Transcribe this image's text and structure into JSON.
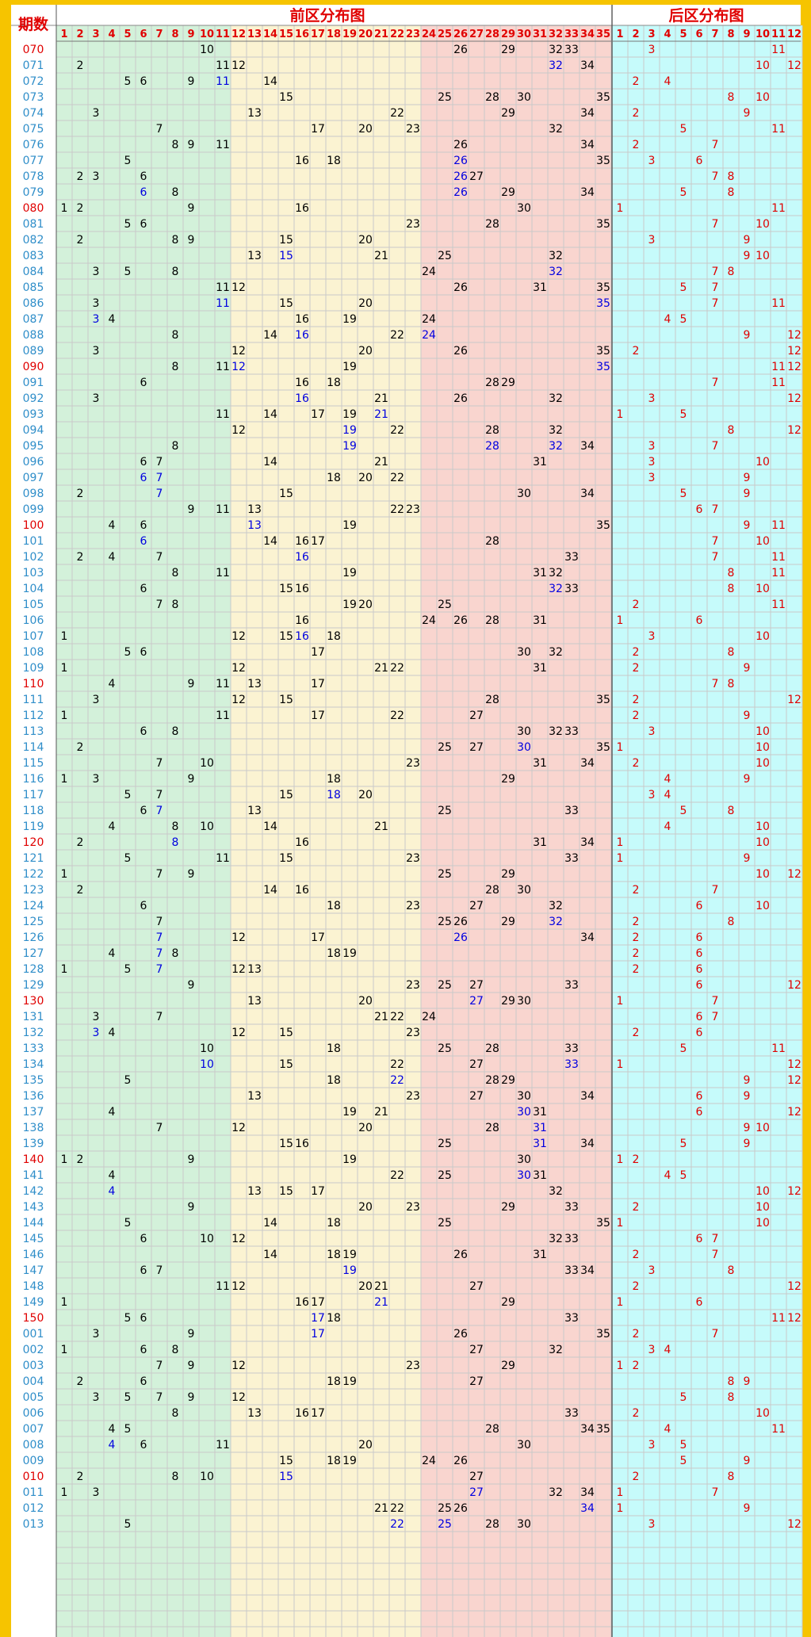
{
  "header": {
    "period_label": "期数",
    "front_title": "前区分布图",
    "back_title": "后区分布图"
  },
  "colors": {
    "frame": "#f6c400",
    "green_zone": "#d3f1da",
    "yellow_zone": "#fbf3d2",
    "pink_zone": "#f9d5cf",
    "cyan_zone": "#c6fbfb",
    "grid": "#c9c9c9",
    "period_text": "#2f8ec9",
    "period_highlight": "#e00000",
    "number_text": "#000000",
    "repeat_text": "#0000e0",
    "back_text": "#e00000",
    "title_text": "#e00000"
  },
  "chart_data": {
    "type": "table",
    "title_front": "前区分布图",
    "title_back": "后区分布图",
    "front_columns": [
      "1",
      "2",
      "3",
      "4",
      "5",
      "6",
      "7",
      "8",
      "9",
      "10",
      "11",
      "12",
      "13",
      "14",
      "15",
      "16",
      "17",
      "18",
      "19",
      "20",
      "21",
      "22",
      "23",
      "24",
      "25",
      "26",
      "27",
      "28",
      "29",
      "30",
      "31",
      "32",
      "33",
      "34",
      "35"
    ],
    "back_columns": [
      "1",
      "2",
      "3",
      "4",
      "5",
      "6",
      "7",
      "8",
      "9",
      "10",
      "11",
      "12"
    ],
    "rows": [
      {
        "period": "070",
        "front": [
          10,
          26,
          29,
          32,
          33
        ],
        "back": [
          3,
          11
        ]
      },
      {
        "period": "071",
        "front": [
          2,
          11,
          12,
          32,
          34
        ],
        "back": [
          10,
          12
        ]
      },
      {
        "period": "072",
        "front": [
          5,
          6,
          9,
          11,
          14
        ],
        "back": [
          2,
          4
        ]
      },
      {
        "period": "073",
        "front": [
          15,
          25,
          28,
          30,
          35
        ],
        "back": [
          8,
          10
        ]
      },
      {
        "period": "074",
        "front": [
          3,
          13,
          22,
          29,
          34
        ],
        "back": [
          2,
          9
        ]
      },
      {
        "period": "075",
        "front": [
          7,
          17,
          20,
          23,
          32
        ],
        "back": [
          5,
          11
        ]
      },
      {
        "period": "076",
        "front": [
          8,
          9,
          11,
          26,
          34
        ],
        "back": [
          2,
          7
        ]
      },
      {
        "period": "077",
        "front": [
          5,
          16,
          18,
          26,
          35
        ],
        "back": [
          3,
          6
        ]
      },
      {
        "period": "078",
        "front": [
          2,
          3,
          6,
          26,
          27
        ],
        "back": [
          7,
          8
        ]
      },
      {
        "period": "079",
        "front": [
          6,
          8,
          26,
          29,
          34
        ],
        "back": [
          5,
          8
        ]
      },
      {
        "period": "080",
        "front": [
          1,
          2,
          9,
          16,
          30
        ],
        "back": [
          1,
          11
        ]
      },
      {
        "period": "081",
        "front": [
          5,
          6,
          23,
          28,
          35
        ],
        "back": [
          7,
          10
        ]
      },
      {
        "period": "082",
        "front": [
          2,
          8,
          9,
          15,
          20
        ],
        "back": [
          3,
          9
        ]
      },
      {
        "period": "083",
        "front": [
          13,
          15,
          21,
          25,
          32
        ],
        "back": [
          9,
          10
        ]
      },
      {
        "period": "084",
        "front": [
          3,
          5,
          8,
          24,
          32
        ],
        "back": [
          7,
          8
        ]
      },
      {
        "period": "085",
        "front": [
          11,
          12,
          26,
          31,
          35
        ],
        "back": [
          5,
          7
        ]
      },
      {
        "period": "086",
        "front": [
          3,
          11,
          15,
          20,
          35
        ],
        "back": [
          7,
          11
        ]
      },
      {
        "period": "087",
        "front": [
          3,
          4,
          16,
          19,
          24
        ],
        "back": [
          4,
          5
        ]
      },
      {
        "period": "088",
        "front": [
          8,
          14,
          16,
          22,
          24
        ],
        "back": [
          9,
          12
        ]
      },
      {
        "period": "089",
        "front": [
          3,
          12,
          20,
          26,
          35
        ],
        "back": [
          2,
          12
        ]
      },
      {
        "period": "090",
        "front": [
          8,
          11,
          12,
          19,
          35
        ],
        "back": [
          11,
          12
        ]
      },
      {
        "period": "091",
        "front": [
          6,
          16,
          18,
          28,
          29
        ],
        "back": [
          7,
          11
        ]
      },
      {
        "period": "092",
        "front": [
          3,
          16,
          21,
          26,
          32
        ],
        "back": [
          3,
          12
        ]
      },
      {
        "period": "093",
        "front": [
          11,
          14,
          17,
          19,
          21
        ],
        "back": [
          1,
          5
        ]
      },
      {
        "period": "094",
        "front": [
          12,
          19,
          22,
          28,
          32
        ],
        "back": [
          8,
          12
        ]
      },
      {
        "period": "095",
        "front": [
          8,
          19,
          28,
          32,
          34
        ],
        "back": [
          3,
          7
        ]
      },
      {
        "period": "096",
        "front": [
          6,
          7,
          14,
          21,
          31
        ],
        "back": [
          3,
          10
        ]
      },
      {
        "period": "097",
        "front": [
          6,
          7,
          18,
          20,
          22
        ],
        "back": [
          3,
          9
        ]
      },
      {
        "period": "098",
        "front": [
          2,
          7,
          15,
          30,
          34
        ],
        "back": [
          5,
          9
        ]
      },
      {
        "period": "099",
        "front": [
          9,
          11,
          13,
          22,
          23
        ],
        "back": [
          6,
          7
        ]
      },
      {
        "period": "100",
        "front": [
          4,
          6,
          13,
          19,
          35
        ],
        "back": [
          9,
          11
        ]
      },
      {
        "period": "101",
        "front": [
          6,
          14,
          16,
          17,
          28
        ],
        "back": [
          7,
          10
        ]
      },
      {
        "period": "102",
        "front": [
          2,
          4,
          7,
          16,
          33
        ],
        "back": [
          7,
          11
        ]
      },
      {
        "period": "103",
        "front": [
          8,
          11,
          19,
          31,
          32
        ],
        "back": [
          8,
          11
        ]
      },
      {
        "period": "104",
        "front": [
          6,
          15,
          16,
          32,
          33
        ],
        "back": [
          8,
          10
        ]
      },
      {
        "period": "105",
        "front": [
          7,
          8,
          19,
          20,
          25
        ],
        "back": [
          2,
          11
        ]
      },
      {
        "period": "106",
        "front": [
          16,
          24,
          26,
          28,
          31
        ],
        "back": [
          1,
          6
        ]
      },
      {
        "period": "107",
        "front": [
          1,
          12,
          15,
          16,
          18
        ],
        "back": [
          3,
          10
        ]
      },
      {
        "period": "108",
        "front": [
          5,
          6,
          17,
          30,
          32
        ],
        "back": [
          2,
          8
        ]
      },
      {
        "period": "109",
        "front": [
          1,
          12,
          21,
          22,
          31
        ],
        "back": [
          2,
          9
        ]
      },
      {
        "period": "110",
        "front": [
          4,
          9,
          11,
          13,
          17
        ],
        "back": [
          7,
          8
        ]
      },
      {
        "period": "111",
        "front": [
          3,
          12,
          15,
          28,
          35
        ],
        "back": [
          2,
          12
        ]
      },
      {
        "period": "112",
        "front": [
          1,
          11,
          17,
          22,
          27
        ],
        "back": [
          2,
          9
        ]
      },
      {
        "period": "113",
        "front": [
          6,
          8,
          30,
          32,
          33
        ],
        "back": [
          3,
          10
        ]
      },
      {
        "period": "114",
        "front": [
          2,
          25,
          27,
          30,
          35
        ],
        "back": [
          1,
          10
        ]
      },
      {
        "period": "115",
        "front": [
          7,
          10,
          23,
          31,
          34
        ],
        "back": [
          2,
          10
        ]
      },
      {
        "period": "116",
        "front": [
          1,
          3,
          9,
          18,
          29
        ],
        "back": [
          4,
          9
        ]
      },
      {
        "period": "117",
        "front": [
          5,
          7,
          15,
          18,
          20
        ],
        "back": [
          3,
          4
        ]
      },
      {
        "period": "118",
        "front": [
          6,
          7,
          13,
          25,
          33
        ],
        "back": [
          5,
          8
        ]
      },
      {
        "period": "119",
        "front": [
          4,
          8,
          10,
          14,
          21
        ],
        "back": [
          4,
          10
        ]
      },
      {
        "period": "120",
        "front": [
          2,
          8,
          16,
          31,
          34
        ],
        "back": [
          1,
          10
        ]
      },
      {
        "period": "121",
        "front": [
          5,
          11,
          15,
          23,
          33
        ],
        "back": [
          1,
          9
        ]
      },
      {
        "period": "122",
        "front": [
          1,
          7,
          9,
          25,
          29
        ],
        "back": [
          10,
          12
        ]
      },
      {
        "period": "123",
        "front": [
          2,
          14,
          16,
          28,
          30
        ],
        "back": [
          2,
          7
        ]
      },
      {
        "period": "124",
        "front": [
          6,
          18,
          23,
          27,
          32
        ],
        "back": [
          6,
          10
        ]
      },
      {
        "period": "125",
        "front": [
          7,
          25,
          26,
          29,
          32
        ],
        "back": [
          2,
          8
        ]
      },
      {
        "period": "126",
        "front": [
          7,
          12,
          17,
          26,
          34
        ],
        "back": [
          2,
          6
        ]
      },
      {
        "period": "127",
        "front": [
          4,
          7,
          8,
          18,
          19
        ],
        "back": [
          2,
          6
        ]
      },
      {
        "period": "128",
        "front": [
          1,
          5,
          7,
          12,
          13
        ],
        "back": [
          2,
          6
        ]
      },
      {
        "period": "129",
        "front": [
          9,
          23,
          25,
          27,
          33
        ],
        "back": [
          6,
          12
        ]
      },
      {
        "period": "130",
        "front": [
          13,
          20,
          27,
          29,
          30
        ],
        "back": [
          1,
          7
        ]
      },
      {
        "period": "131",
        "front": [
          3,
          7,
          21,
          22,
          24
        ],
        "back": [
          6,
          7
        ]
      },
      {
        "period": "132",
        "front": [
          3,
          4,
          12,
          15,
          23
        ],
        "back": [
          2,
          6
        ]
      },
      {
        "period": "133",
        "front": [
          10,
          18,
          25,
          28,
          33
        ],
        "back": [
          5,
          11
        ]
      },
      {
        "period": "134",
        "front": [
          10,
          15,
          22,
          27,
          33
        ],
        "back": [
          1,
          12
        ]
      },
      {
        "period": "135",
        "front": [
          5,
          18,
          22,
          28,
          29
        ],
        "back": [
          9,
          12
        ]
      },
      {
        "period": "136",
        "front": [
          13,
          23,
          27,
          30,
          34
        ],
        "back": [
          6,
          9
        ]
      },
      {
        "period": "137",
        "front": [
          4,
          19,
          21,
          30,
          31
        ],
        "back": [
          6,
          12
        ]
      },
      {
        "period": "138",
        "front": [
          7,
          12,
          20,
          28,
          31
        ],
        "back": [
          9,
          10
        ]
      },
      {
        "period": "139",
        "front": [
          15,
          16,
          25,
          31,
          34
        ],
        "back": [
          5,
          9
        ]
      },
      {
        "period": "140",
        "front": [
          1,
          2,
          9,
          19,
          30
        ],
        "back": [
          1,
          2
        ]
      },
      {
        "period": "141",
        "front": [
          4,
          22,
          25,
          30,
          31
        ],
        "back": [
          4,
          5
        ]
      },
      {
        "period": "142",
        "front": [
          4,
          13,
          15,
          17,
          32
        ],
        "back": [
          10,
          12
        ]
      },
      {
        "period": "143",
        "front": [
          9,
          20,
          23,
          29,
          33
        ],
        "back": [
          2,
          10
        ]
      },
      {
        "period": "144",
        "front": [
          5,
          14,
          18,
          25,
          35
        ],
        "back": [
          1,
          10
        ]
      },
      {
        "period": "145",
        "front": [
          6,
          10,
          12,
          32,
          33
        ],
        "back": [
          6,
          7
        ]
      },
      {
        "period": "146",
        "front": [
          14,
          18,
          19,
          26,
          31
        ],
        "back": [
          2,
          7
        ]
      },
      {
        "period": "147",
        "front": [
          6,
          7,
          19,
          33,
          34
        ],
        "back": [
          3,
          8
        ]
      },
      {
        "period": "148",
        "front": [
          11,
          12,
          20,
          21,
          27
        ],
        "back": [
          2,
          12
        ]
      },
      {
        "period": "149",
        "front": [
          1,
          16,
          17,
          21,
          29
        ],
        "back": [
          1,
          6
        ]
      },
      {
        "period": "150",
        "front": [
          5,
          6,
          17,
          18,
          33
        ],
        "back": [
          11,
          12
        ]
      },
      {
        "period": "001",
        "front": [
          3,
          9,
          17,
          26,
          35
        ],
        "back": [
          2,
          7
        ]
      },
      {
        "period": "002",
        "front": [
          1,
          6,
          8,
          27,
          32
        ],
        "back": [
          3,
          4
        ]
      },
      {
        "period": "003",
        "front": [
          7,
          9,
          12,
          23,
          29
        ],
        "back": [
          1,
          2
        ]
      },
      {
        "period": "004",
        "front": [
          2,
          6,
          18,
          19,
          27
        ],
        "back": [
          8,
          9
        ]
      },
      {
        "period": "005",
        "front": [
          3,
          5,
          7,
          9,
          12
        ],
        "back": [
          5,
          8
        ]
      },
      {
        "period": "006",
        "front": [
          8,
          13,
          16,
          17,
          33
        ],
        "back": [
          2,
          10
        ]
      },
      {
        "period": "007",
        "front": [
          4,
          5,
          28,
          34,
          35
        ],
        "back": [
          4,
          11
        ]
      },
      {
        "period": "008",
        "front": [
          4,
          6,
          11,
          20,
          30
        ],
        "back": [
          3,
          5
        ]
      },
      {
        "period": "009",
        "front": [
          15,
          18,
          19,
          24,
          26
        ],
        "back": [
          5,
          9
        ]
      },
      {
        "period": "010",
        "front": [
          2,
          8,
          10,
          15,
          27
        ],
        "back": [
          2,
          8
        ]
      },
      {
        "period": "011",
        "front": [
          1,
          3,
          27,
          32,
          34
        ],
        "back": [
          1,
          7
        ]
      },
      {
        "period": "012",
        "front": [
          21,
          22,
          25,
          26,
          34
        ],
        "back": [
          1,
          9
        ]
      },
      {
        "period": "013",
        "front": [
          5,
          22,
          25,
          28,
          30
        ],
        "back": [
          3,
          12
        ]
      }
    ]
  }
}
